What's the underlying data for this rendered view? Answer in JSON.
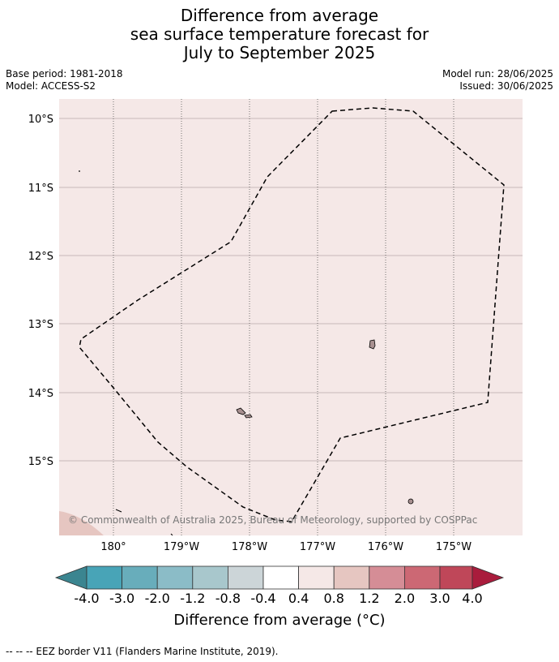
{
  "title": {
    "line1": "Difference from average",
    "line2": "sea surface temperature forecast for",
    "line3": "July to September 2025"
  },
  "meta": {
    "base_period": "Base period: 1981-2018",
    "model": "Model: ACCESS-S2",
    "model_run": "Model run: 28/06/2025",
    "issued": "Issued: 30/06/2025"
  },
  "map": {
    "lat_labels": [
      "10°S",
      "11°S",
      "12°S",
      "13°S",
      "14°S",
      "15°S"
    ],
    "lon_labels": [
      "180°",
      "179°W",
      "178°W",
      "177°W",
      "176°W",
      "175°W"
    ],
    "background_color": "#f5e8e7",
    "corner_color": "#e6c6c1",
    "copyright": "© Commonwealth of Australia 2025, Bureau of Meteorology, supported by COSPPac"
  },
  "colorbar": {
    "ticks": [
      "-4.0",
      "-3.0",
      "-2.0",
      "-1.2",
      "-0.8",
      "-0.4",
      "0.4",
      "0.8",
      "1.2",
      "2.0",
      "3.0",
      "4.0"
    ],
    "colors": [
      "#3b8590",
      "#48a4b7",
      "#68adbb",
      "#8bbcc7",
      "#a8c7cc",
      "#ccd5d8",
      "#ffffff",
      "#f5e8e7",
      "#e6c6c1",
      "#d58d96",
      "#cc6874",
      "#bf4759",
      "#a91c3c"
    ],
    "label": "Difference from average (°C)"
  },
  "footnote": "--  --  -- EEZ border V11 (Flanders Marine Institute, 2019)."
}
